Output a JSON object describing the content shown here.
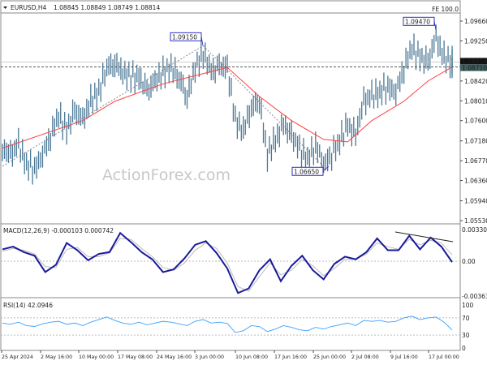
{
  "header": {
    "symbol": "EURUSD,H4",
    "ohlc": "1.08845 1.08849 1.08749 1.08814",
    "fe_label": "FE 100.0"
  },
  "watermark": "ActionForex.com",
  "colors": {
    "candle": "#4a7896",
    "ma": "#ff4040",
    "macd": "#1a1a9c",
    "signal": "#bbbbbb",
    "rsi": "#3aa0ff",
    "label_box": "#3030c0"
  },
  "chart_data": [
    {
      "type": "candlestick",
      "title": "EURUSD,H4",
      "price_ticks": [
        "1.09660",
        "1.09250",
        "1.08420",
        "1.08010",
        "1.07600",
        "1.07180",
        "1.06770",
        "1.06360",
        "1.05940",
        "1.05530"
      ],
      "ylim": [
        1.0553,
        1.0966
      ],
      "close": [
        1.07,
        1.069,
        1.071,
        1.067,
        1.066,
        1.069,
        1.073,
        1.077,
        1.074,
        1.078,
        1.076,
        1.08,
        1.082,
        1.087,
        1.088,
        1.086,
        1.085,
        1.085,
        1.082,
        1.084,
        1.086,
        1.087,
        1.085,
        1.081,
        1.087,
        1.09,
        1.086,
        1.087,
        1.087,
        1.076,
        1.074,
        1.079,
        1.08,
        1.069,
        1.072,
        1.075,
        1.073,
        1.07,
        1.068,
        1.071,
        1.067,
        1.069,
        1.072,
        1.075,
        1.073,
        1.08,
        1.081,
        1.082,
        1.083,
        1.082,
        1.087,
        1.091,
        1.089,
        1.088,
        1.093,
        1.089,
        1.0881
      ],
      "ma": [
        [
          0,
          1.0703
        ],
        [
          10,
          1.076
        ],
        [
          14,
          1.08
        ],
        [
          20,
          1.0836
        ],
        [
          28,
          1.087
        ],
        [
          32,
          1.081
        ],
        [
          36,
          1.076
        ],
        [
          40,
          1.0721
        ],
        [
          43,
          1.0716
        ],
        [
          46,
          1.076
        ],
        [
          50,
          1.08
        ],
        [
          53,
          1.0842
        ],
        [
          56,
          1.0871
        ]
      ],
      "annotations": [
        "1.09150",
        "1.06650",
        "1.09470"
      ],
      "current_price": "1.08814",
      "ma_value": "1.08710",
      "x_ticks": [
        "25 Apr 2024",
        "2 May 16:00",
        "10 May 00:00",
        "17 May 08:00",
        "24 May 16:00",
        "3 Jun 00:00",
        "10 Jun 08:00",
        "17 Jun 16:00",
        "25 Jun 00:00",
        "2 Jul 08:00",
        "9 Jul 16:00",
        "17 Jul 00:00"
      ]
    },
    {
      "type": "line",
      "title": "MACD(12,26,9) -0.000103 0.000742",
      "ylim": [
        -0.003635,
        0.003308
      ],
      "ticks": [
        "0.003308",
        "0.00",
        "-0.003635"
      ],
      "macd": [
        0.0013,
        0.0016,
        0.001,
        0.0006,
        -0.0012,
        -0.0004,
        0.002,
        0.0012,
        0.0001,
        0.0008,
        0.001,
        0.0031,
        0.0021,
        0.001,
        0.0002,
        -0.0012,
        -0.0009,
        0.0003,
        0.0018,
        0.0022,
        0.0009,
        -0.0008,
        -0.0035,
        -0.003,
        -0.001,
        0.0002,
        -0.0022,
        -0.0005,
        0.0006,
        -0.001,
        -0.002,
        -0.0003,
        0.0005,
        0.0002,
        0.001,
        0.0025,
        0.0012,
        0.0012,
        0.0028,
        0.0013,
        0.0026,
        0.0016,
        -0.0001
      ],
      "signal": [
        0.0011,
        0.0014,
        0.0012,
        0.0008,
        -0.0006,
        -0.0007,
        0.0013,
        0.0015,
        0.0005,
        0.0005,
        0.0009,
        0.0025,
        0.0024,
        0.0014,
        0.0005,
        -0.0007,
        -0.001,
        -0.0002,
        0.0012,
        0.002,
        0.0014,
        -0.0002,
        -0.0028,
        -0.0033,
        -0.0017,
        -0.0002,
        -0.0015,
        -0.001,
        0.0002,
        -0.0005,
        -0.0016,
        -0.0008,
        0.0002,
        0.0002,
        0.0008,
        0.002,
        0.0016,
        0.0013,
        0.0024,
        0.0018,
        0.0023,
        0.002,
        0.0007
      ]
    },
    {
      "type": "line",
      "title": "RSI(14) 42.0946",
      "ylim": [
        0,
        100
      ],
      "ticks": [
        "100",
        "70",
        "30",
        "0"
      ],
      "rsi": [
        58,
        55,
        60,
        52,
        50,
        56,
        60,
        62,
        55,
        58,
        52,
        60,
        66,
        72,
        64,
        58,
        55,
        60,
        54,
        58,
        62,
        60,
        56,
        52,
        62,
        66,
        58,
        60,
        57,
        36,
        40,
        52,
        50,
        38,
        44,
        52,
        48,
        42,
        40,
        48,
        44,
        50,
        54,
        58,
        52,
        64,
        62,
        64,
        60,
        62,
        70,
        74,
        66,
        70,
        72,
        60,
        42
      ]
    }
  ]
}
